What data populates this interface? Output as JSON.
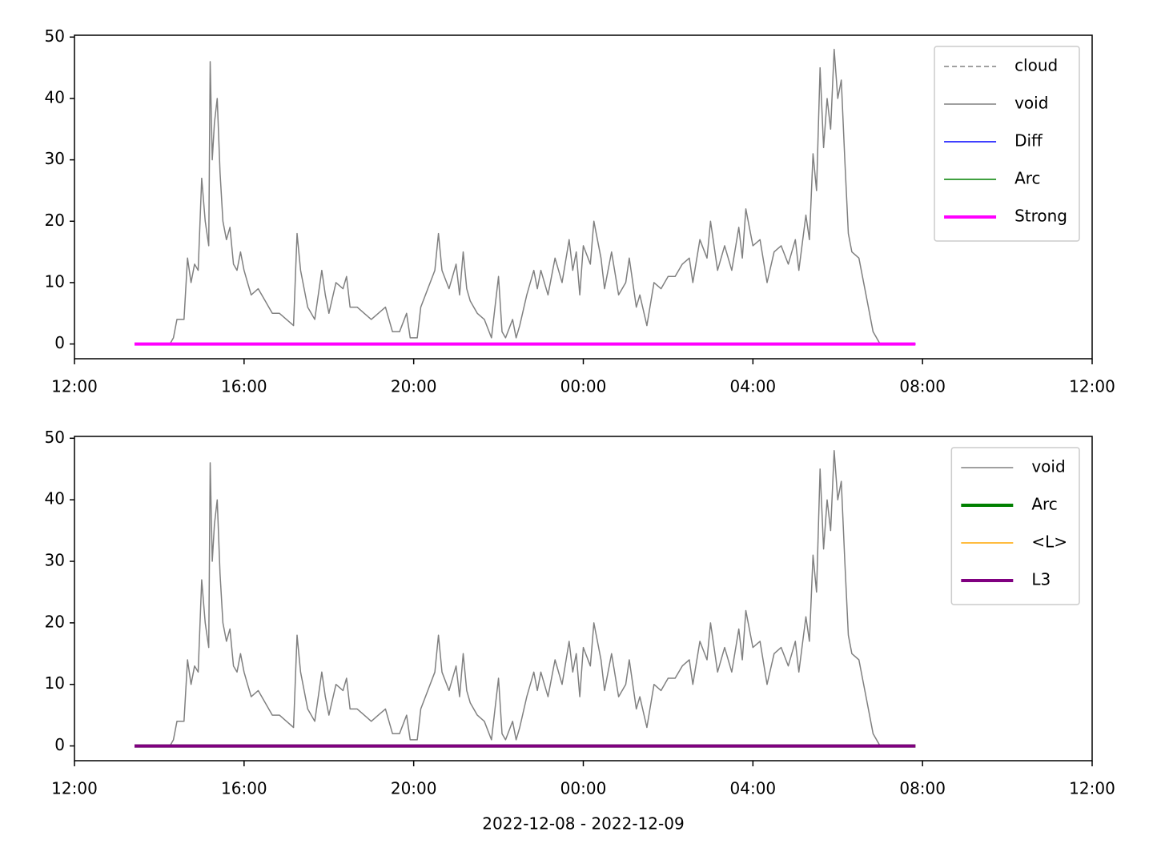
{
  "chart_data": [
    {
      "type": "line",
      "xlim": [
        "2022-12-08T12:00",
        "2022-12-09T12:00"
      ],
      "xticks": [
        {
          "value": "2022-12-08T12:00",
          "label": "12:00"
        },
        {
          "value": "2022-12-08T16:00",
          "label": "16:00"
        },
        {
          "value": "2022-12-08T20:00",
          "label": "20:00"
        },
        {
          "value": "2022-12-09T00:00",
          "label": "00:00"
        },
        {
          "value": "2022-12-09T04:00",
          "label": "04:00"
        },
        {
          "value": "2022-12-09T08:00",
          "label": "08:00"
        },
        {
          "value": "2022-12-09T12:00",
          "label": "12:00"
        }
      ],
      "ylim": [
        -2.4,
        50.3
      ],
      "yticks": [
        0,
        10,
        20,
        30,
        40,
        50
      ],
      "legend": "upper right",
      "series": [
        {
          "name": "cloud",
          "color": "#808080",
          "dash": true,
          "width": 1.5,
          "x": [
            "2022-12-08T13:25",
            "2022-12-09T07:50"
          ],
          "values": [
            0,
            0
          ]
        },
        {
          "name": "void",
          "color": "#808080",
          "width": 1.5,
          "x": [
            "2022-12-08T14:15",
            "2022-12-08T14:20",
            "2022-12-08T14:25",
            "2022-12-08T14:35",
            "2022-12-08T14:40",
            "2022-12-08T14:45",
            "2022-12-08T14:50",
            "2022-12-08T14:55",
            "2022-12-08T15:00",
            "2022-12-08T15:05",
            "2022-12-08T15:10",
            "2022-12-08T15:12",
            "2022-12-08T15:15",
            "2022-12-08T15:18",
            "2022-12-08T15:22",
            "2022-12-08T15:26",
            "2022-12-08T15:30",
            "2022-12-08T15:35",
            "2022-12-08T15:40",
            "2022-12-08T15:45",
            "2022-12-08T15:50",
            "2022-12-08T15:55",
            "2022-12-08T16:00",
            "2022-12-08T16:05",
            "2022-12-08T16:10",
            "2022-12-08T16:20",
            "2022-12-08T16:30",
            "2022-12-08T16:40",
            "2022-12-08T16:50",
            "2022-12-08T17:00",
            "2022-12-08T17:10",
            "2022-12-08T17:15",
            "2022-12-08T17:20",
            "2022-12-08T17:30",
            "2022-12-08T17:40",
            "2022-12-08T17:50",
            "2022-12-08T17:55",
            "2022-12-08T18:00",
            "2022-12-08T18:10",
            "2022-12-08T18:20",
            "2022-12-08T18:25",
            "2022-12-08T18:30",
            "2022-12-08T18:40",
            "2022-12-08T18:50",
            "2022-12-08T19:00",
            "2022-12-08T19:10",
            "2022-12-08T19:20",
            "2022-12-08T19:25",
            "2022-12-08T19:30",
            "2022-12-08T19:40",
            "2022-12-08T19:50",
            "2022-12-08T19:55",
            "2022-12-08T20:00",
            "2022-12-08T20:05",
            "2022-12-08T20:10",
            "2022-12-08T20:20",
            "2022-12-08T20:30",
            "2022-12-08T20:35",
            "2022-12-08T20:40",
            "2022-12-08T20:50",
            "2022-12-08T21:00",
            "2022-12-08T21:05",
            "2022-12-08T21:10",
            "2022-12-08T21:15",
            "2022-12-08T21:20",
            "2022-12-08T21:30",
            "2022-12-08T21:40",
            "2022-12-08T21:50",
            "2022-12-08T22:00",
            "2022-12-08T22:05",
            "2022-12-08T22:10",
            "2022-12-08T22:20",
            "2022-12-08T22:25",
            "2022-12-08T22:30",
            "2022-12-08T22:40",
            "2022-12-08T22:50",
            "2022-12-08T22:55",
            "2022-12-08T23:00",
            "2022-12-08T23:10",
            "2022-12-08T23:20",
            "2022-12-08T23:30",
            "2022-12-08T23:40",
            "2022-12-08T23:45",
            "2022-12-08T23:50",
            "2022-12-08T23:55",
            "2022-12-09T00:00",
            "2022-12-09T00:10",
            "2022-12-09T00:15",
            "2022-12-09T00:25",
            "2022-12-09T00:30",
            "2022-12-09T00:40",
            "2022-12-09T00:50",
            "2022-12-09T01:00",
            "2022-12-09T01:05",
            "2022-12-09T01:15",
            "2022-12-09T01:20",
            "2022-12-09T01:30",
            "2022-12-09T01:40",
            "2022-12-09T01:50",
            "2022-12-09T02:00",
            "2022-12-09T02:10",
            "2022-12-09T02:20",
            "2022-12-09T02:30",
            "2022-12-09T02:35",
            "2022-12-09T02:45",
            "2022-12-09T02:55",
            "2022-12-09T03:00",
            "2022-12-09T03:10",
            "2022-12-09T03:20",
            "2022-12-09T03:30",
            "2022-12-09T03:40",
            "2022-12-09T03:45",
            "2022-12-09T03:50",
            "2022-12-09T04:00",
            "2022-12-09T04:10",
            "2022-12-09T04:20",
            "2022-12-09T04:30",
            "2022-12-09T04:40",
            "2022-12-09T04:50",
            "2022-12-09T05:00",
            "2022-12-09T05:05",
            "2022-12-09T05:15",
            "2022-12-09T05:20",
            "2022-12-09T05:25",
            "2022-12-09T05:30",
            "2022-12-09T05:35",
            "2022-12-09T05:40",
            "2022-12-09T05:45",
            "2022-12-09T05:50",
            "2022-12-09T05:55",
            "2022-12-09T06:00",
            "2022-12-09T06:05",
            "2022-12-09T06:10",
            "2022-12-09T06:15",
            "2022-12-09T06:20",
            "2022-12-09T06:30",
            "2022-12-09T06:40",
            "2022-12-09T06:50",
            "2022-12-09T07:00"
          ],
          "values": [
            0,
            1,
            4,
            4,
            14,
            10,
            13,
            12,
            27,
            20,
            16,
            46,
            30,
            36,
            40,
            28,
            20,
            17,
            19,
            13,
            12,
            15,
            12,
            10,
            8,
            9,
            7,
            5,
            5,
            4,
            3,
            18,
            12,
            6,
            4,
            12,
            8,
            5,
            10,
            9,
            11,
            6,
            6,
            5,
            4,
            5,
            6,
            4,
            2,
            2,
            5,
            1,
            1,
            1,
            6,
            9,
            12,
            18,
            12,
            9,
            13,
            8,
            15,
            9,
            7,
            5,
            4,
            1,
            11,
            2,
            1,
            4,
            1,
            3,
            8,
            12,
            9,
            12,
            8,
            14,
            10,
            17,
            12,
            15,
            8,
            16,
            13,
            20,
            14,
            9,
            15,
            8,
            10,
            14,
            6,
            8,
            3,
            10,
            9,
            11,
            11,
            13,
            14,
            10,
            17,
            14,
            20,
            12,
            16,
            12,
            19,
            14,
            22,
            16,
            17,
            10,
            15,
            16,
            13,
            17,
            12,
            21,
            17,
            31,
            25,
            45,
            32,
            40,
            35,
            48,
            40,
            43,
            30,
            18,
            15,
            14,
            8,
            2,
            0
          ]
        },
        {
          "name": "Diff",
          "color": "#0000ff",
          "width": 1.5,
          "x": [
            "2022-12-08T13:25",
            "2022-12-09T07:50"
          ],
          "values": [
            0,
            0
          ]
        },
        {
          "name": "Arc",
          "color": "#008000",
          "width": 1.5,
          "x": [
            "2022-12-08T13:25",
            "2022-12-09T07:50"
          ],
          "values": [
            0,
            0
          ]
        },
        {
          "name": "Strong",
          "color": "#ff00ff",
          "width": 4,
          "x": [
            "2022-12-08T13:25",
            "2022-12-09T07:50"
          ],
          "values": [
            0,
            0
          ]
        }
      ]
    },
    {
      "type": "line",
      "xlabel": "2022-12-08 - 2022-12-09",
      "xlim": [
        "2022-12-08T12:00",
        "2022-12-09T12:00"
      ],
      "xticks": [
        {
          "value": "2022-12-08T12:00",
          "label": "12:00"
        },
        {
          "value": "2022-12-08T16:00",
          "label": "16:00"
        },
        {
          "value": "2022-12-08T20:00",
          "label": "20:00"
        },
        {
          "value": "2022-12-09T00:00",
          "label": "00:00"
        },
        {
          "value": "2022-12-09T04:00",
          "label": "04:00"
        },
        {
          "value": "2022-12-09T08:00",
          "label": "08:00"
        },
        {
          "value": "2022-12-09T12:00",
          "label": "12:00"
        }
      ],
      "ylim": [
        -2.4,
        50.3
      ],
      "yticks": [
        0,
        10,
        20,
        30,
        40,
        50
      ],
      "legend": "upper right",
      "series": [
        {
          "name": "void",
          "color": "#808080",
          "width": 1.5,
          "x": [
            "2022-12-08T14:15",
            "2022-12-08T14:20",
            "2022-12-08T14:25",
            "2022-12-08T14:35",
            "2022-12-08T14:40",
            "2022-12-08T14:45",
            "2022-12-08T14:50",
            "2022-12-08T14:55",
            "2022-12-08T15:00",
            "2022-12-08T15:05",
            "2022-12-08T15:10",
            "2022-12-08T15:12",
            "2022-12-08T15:15",
            "2022-12-08T15:18",
            "2022-12-08T15:22",
            "2022-12-08T15:26",
            "2022-12-08T15:30",
            "2022-12-08T15:35",
            "2022-12-08T15:40",
            "2022-12-08T15:45",
            "2022-12-08T15:50",
            "2022-12-08T15:55",
            "2022-12-08T16:00",
            "2022-12-08T16:05",
            "2022-12-08T16:10",
            "2022-12-08T16:20",
            "2022-12-08T16:30",
            "2022-12-08T16:40",
            "2022-12-08T16:50",
            "2022-12-08T17:00",
            "2022-12-08T17:10",
            "2022-12-08T17:15",
            "2022-12-08T17:20",
            "2022-12-08T17:30",
            "2022-12-08T17:40",
            "2022-12-08T17:50",
            "2022-12-08T17:55",
            "2022-12-08T18:00",
            "2022-12-08T18:10",
            "2022-12-08T18:20",
            "2022-12-08T18:25",
            "2022-12-08T18:30",
            "2022-12-08T18:40",
            "2022-12-08T18:50",
            "2022-12-08T19:00",
            "2022-12-08T19:10",
            "2022-12-08T19:20",
            "2022-12-08T19:25",
            "2022-12-08T19:30",
            "2022-12-08T19:40",
            "2022-12-08T19:50",
            "2022-12-08T19:55",
            "2022-12-08T20:00",
            "2022-12-08T20:05",
            "2022-12-08T20:10",
            "2022-12-08T20:20",
            "2022-12-08T20:30",
            "2022-12-08T20:35",
            "2022-12-08T20:40",
            "2022-12-08T20:50",
            "2022-12-08T21:00",
            "2022-12-08T21:05",
            "2022-12-08T21:10",
            "2022-12-08T21:15",
            "2022-12-08T21:20",
            "2022-12-08T21:30",
            "2022-12-08T21:40",
            "2022-12-08T21:50",
            "2022-12-08T22:00",
            "2022-12-08T22:05",
            "2022-12-08T22:10",
            "2022-12-08T22:20",
            "2022-12-08T22:25",
            "2022-12-08T22:30",
            "2022-12-08T22:40",
            "2022-12-08T22:50",
            "2022-12-08T22:55",
            "2022-12-08T23:00",
            "2022-12-08T23:10",
            "2022-12-08T23:20",
            "2022-12-08T23:30",
            "2022-12-08T23:40",
            "2022-12-08T23:45",
            "2022-12-08T23:50",
            "2022-12-08T23:55",
            "2022-12-09T00:00",
            "2022-12-09T00:10",
            "2022-12-09T00:15",
            "2022-12-09T00:25",
            "2022-12-09T00:30",
            "2022-12-09T00:40",
            "2022-12-09T00:50",
            "2022-12-09T01:00",
            "2022-12-09T01:05",
            "2022-12-09T01:15",
            "2022-12-09T01:20",
            "2022-12-09T01:30",
            "2022-12-09T01:40",
            "2022-12-09T01:50",
            "2022-12-09T02:00",
            "2022-12-09T02:10",
            "2022-12-09T02:20",
            "2022-12-09T02:30",
            "2022-12-09T02:35",
            "2022-12-09T02:45",
            "2022-12-09T02:55",
            "2022-12-09T03:00",
            "2022-12-09T03:10",
            "2022-12-09T03:20",
            "2022-12-09T03:30",
            "2022-12-09T03:40",
            "2022-12-09T03:45",
            "2022-12-09T03:50",
            "2022-12-09T04:00",
            "2022-12-09T04:10",
            "2022-12-09T04:20",
            "2022-12-09T04:30",
            "2022-12-09T04:40",
            "2022-12-09T04:50",
            "2022-12-09T05:00",
            "2022-12-09T05:05",
            "2022-12-09T05:15",
            "2022-12-09T05:20",
            "2022-12-09T05:25",
            "2022-12-09T05:30",
            "2022-12-09T05:35",
            "2022-12-09T05:40",
            "2022-12-09T05:45",
            "2022-12-09T05:50",
            "2022-12-09T05:55",
            "2022-12-09T06:00",
            "2022-12-09T06:05",
            "2022-12-09T06:10",
            "2022-12-09T06:15",
            "2022-12-09T06:20",
            "2022-12-09T06:30",
            "2022-12-09T06:40",
            "2022-12-09T06:50",
            "2022-12-09T07:00"
          ],
          "values": [
            0,
            1,
            4,
            4,
            14,
            10,
            13,
            12,
            27,
            20,
            16,
            46,
            30,
            36,
            40,
            28,
            20,
            17,
            19,
            13,
            12,
            15,
            12,
            10,
            8,
            9,
            7,
            5,
            5,
            4,
            3,
            18,
            12,
            6,
            4,
            12,
            8,
            5,
            10,
            9,
            11,
            6,
            6,
            5,
            4,
            5,
            6,
            4,
            2,
            2,
            5,
            1,
            1,
            1,
            6,
            9,
            12,
            18,
            12,
            9,
            13,
            8,
            15,
            9,
            7,
            5,
            4,
            1,
            11,
            2,
            1,
            4,
            1,
            3,
            8,
            12,
            9,
            12,
            8,
            14,
            10,
            17,
            12,
            15,
            8,
            16,
            13,
            20,
            14,
            9,
            15,
            8,
            10,
            14,
            6,
            8,
            3,
            10,
            9,
            11,
            11,
            13,
            14,
            10,
            17,
            14,
            20,
            12,
            16,
            12,
            19,
            14,
            22,
            16,
            17,
            10,
            15,
            16,
            13,
            17,
            12,
            21,
            17,
            31,
            25,
            45,
            32,
            40,
            35,
            48,
            40,
            43,
            30,
            18,
            15,
            14,
            8,
            2,
            0
          ]
        },
        {
          "name": "Arc",
          "color": "#008000",
          "width": 4,
          "x": [
            "2022-12-08T13:25",
            "2022-12-09T07:50"
          ],
          "values": [
            0,
            0
          ]
        },
        {
          "name": "<L>",
          "color": "#ffa500",
          "width": 1.5,
          "x": [
            "2022-12-08T13:25",
            "2022-12-09T07:50"
          ],
          "values": [
            0,
            0
          ]
        },
        {
          "name": "L3",
          "color": "#800080",
          "width": 4,
          "x": [
            "2022-12-08T13:25",
            "2022-12-09T07:50"
          ],
          "values": [
            0,
            0
          ]
        }
      ]
    }
  ]
}
